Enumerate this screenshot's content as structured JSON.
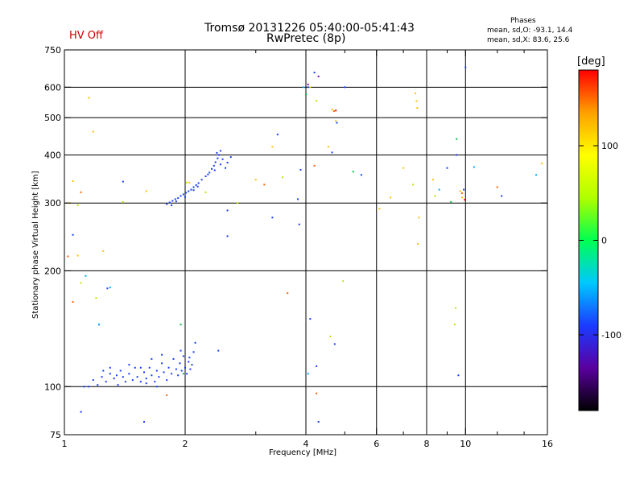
{
  "header": {
    "status": "HV Off",
    "status_color": "#cc0000",
    "title": "Tromsø 20131226 05:40:00-05:41:43",
    "subtitle": "RwPretec (8p)",
    "stats_heading": "Phases",
    "stats_o": "mean, sd,O: -93.1, 14.4",
    "stats_x": "mean, sd,X:  83.6, 25.6"
  },
  "chart_data": {
    "type": "scatter",
    "xlabel": "Frequency [MHz]",
    "ylabel": "Stationary phase Virtual Height [km]",
    "x_scale": "log",
    "y_scale": "log",
    "xlim": [
      1,
      16
    ],
    "ylim": [
      75,
      750
    ],
    "x_ticks": [
      1,
      2,
      4,
      6,
      8,
      10,
      16
    ],
    "x_tick_labels": [
      "1",
      "2",
      "4",
      "6",
      "8",
      "10",
      "16"
    ],
    "x_minor_ticks": [
      3,
      5,
      7,
      9,
      12,
      14
    ],
    "x_grid": [
      2,
      4,
      6,
      8,
      10
    ],
    "y_ticks": [
      75,
      100,
      200,
      300,
      400,
      500,
      600,
      750
    ],
    "y_tick_labels": [
      "75",
      "100",
      "200",
      "300",
      "400",
      "500",
      "600",
      "750"
    ],
    "y_grid": [
      100,
      200,
      300,
      400,
      500,
      600
    ],
    "grid": true,
    "colorbar": {
      "label": "[deg]",
      "range": [
        -180,
        180
      ],
      "ticks": [
        100,
        0,
        -100
      ],
      "tick_labels": [
        "100",
        "0",
        "-100"
      ],
      "stops": [
        "#000000",
        "#5a00a0",
        "#1a3cff",
        "#00c8ff",
        "#00ff50",
        "#b0ff00",
        "#ffff00",
        "#ffa000",
        "#ff0000"
      ]
    },
    "series": [
      {
        "color": "#1a3cff",
        "points": [
          [
            1.15,
            100
          ],
          [
            1.18,
            104
          ],
          [
            1.21,
            101
          ],
          [
            1.24,
            106
          ],
          [
            1.27,
            103
          ],
          [
            1.3,
            108
          ],
          [
            1.33,
            105
          ],
          [
            1.36,
            101
          ],
          [
            1.38,
            110
          ],
          [
            1.4,
            106
          ],
          [
            1.42,
            103
          ],
          [
            1.45,
            108
          ],
          [
            1.48,
            104
          ],
          [
            1.5,
            112
          ],
          [
            1.52,
            106
          ],
          [
            1.55,
            103
          ],
          [
            1.58,
            109
          ],
          [
            1.6,
            105
          ],
          [
            1.63,
            112
          ],
          [
            1.65,
            107
          ],
          [
            1.68,
            103
          ],
          [
            1.7,
            110
          ],
          [
            1.72,
            106
          ],
          [
            1.75,
            115
          ],
          [
            1.77,
            109
          ],
          [
            1.8,
            104
          ],
          [
            1.82,
            112
          ],
          [
            1.85,
            108
          ],
          [
            1.87,
            118
          ],
          [
            1.9,
            111
          ],
          [
            1.92,
            107
          ],
          [
            1.94,
            115
          ],
          [
            1.96,
            110
          ],
          [
            1.98,
            120
          ],
          [
            2.0,
            112
          ],
          [
            2.02,
            108
          ],
          [
            2.04,
            116
          ],
          [
            2.06,
            111
          ],
          [
            2.08,
            114
          ],
          [
            2.1,
            123
          ],
          [
            2.12,
            130
          ],
          [
            1.25,
            110
          ],
          [
            1.35,
            107
          ],
          [
            1.45,
            114
          ],
          [
            1.55,
            112
          ],
          [
            1.65,
            118
          ],
          [
            1.75,
            121
          ],
          [
            1.95,
            124
          ],
          [
            2.05,
            119
          ],
          [
            1.6,
            102
          ],
          [
            1.7,
            100
          ],
          [
            1.8,
            298
          ],
          [
            1.83,
            301
          ],
          [
            1.86,
            304
          ],
          [
            1.89,
            307
          ],
          [
            1.92,
            309
          ],
          [
            1.95,
            313
          ],
          [
            1.98,
            316
          ],
          [
            2.01,
            319
          ],
          [
            2.04,
            322
          ],
          [
            2.07,
            325
          ],
          [
            2.1,
            330
          ],
          [
            2.13,
            334
          ],
          [
            2.16,
            338
          ],
          [
            2.2,
            345
          ],
          [
            2.25,
            352
          ],
          [
            2.3,
            360
          ],
          [
            2.33,
            368
          ],
          [
            2.36,
            375
          ],
          [
            2.38,
            383
          ],
          [
            2.41,
            392
          ],
          [
            2.43,
            400
          ],
          [
            2.45,
            410
          ],
          [
            2.48,
            390
          ],
          [
            2.52,
            370
          ],
          [
            2.55,
            382
          ],
          [
            2.6,
            395
          ],
          [
            1.85,
            296
          ],
          [
            1.9,
            303
          ],
          [
            2.0,
            311
          ],
          [
            2.1,
            324
          ],
          [
            2.15,
            331
          ],
          [
            2.28,
            356
          ],
          [
            2.37,
            365
          ],
          [
            2.4,
            405
          ],
          [
            2.45,
            378
          ],
          [
            1.05,
            248
          ],
          [
            1.3,
            112
          ],
          [
            1.28,
            180
          ],
          [
            1.4,
            341
          ],
          [
            1.58,
            81
          ],
          [
            1.1,
            86
          ],
          [
            1.12,
            100
          ],
          [
            1.22,
            145
          ],
          [
            2.55,
            246
          ],
          [
            2.55,
            287
          ],
          [
            2.42,
            124
          ],
          [
            3.3,
            275
          ],
          [
            3.4,
            452
          ],
          [
            3.82,
            307
          ],
          [
            3.88,
            366
          ],
          [
            4.05,
            600
          ],
          [
            4.2,
            655
          ],
          [
            4.25,
            113
          ],
          [
            4.3,
            81
          ],
          [
            4.65,
            406
          ],
          [
            4.78,
            485
          ],
          [
            4.72,
            129
          ],
          [
            5.0,
            600
          ],
          [
            5.5,
            355
          ],
          [
            9.0,
            370
          ],
          [
            9.5,
            400
          ],
          [
            9.6,
            107
          ],
          [
            9.9,
            325
          ],
          [
            10.0,
            676
          ],
          [
            4.1,
            150
          ],
          [
            3.85,
            264
          ],
          [
            12.3,
            313
          ]
        ]
      },
      {
        "color": "#00a8ff",
        "points": [
          [
            1.13,
            194
          ],
          [
            1.3,
            181
          ],
          [
            1.22,
            145
          ],
          [
            4.05,
            108
          ],
          [
            8.6,
            325
          ],
          [
            10.5,
            372
          ],
          [
            15,
            355
          ],
          [
            3.95,
            600
          ]
        ]
      },
      {
        "color": "#00c040",
        "points": [
          [
            1.95,
            145
          ],
          [
            1.98,
            108
          ],
          [
            4.0,
            575
          ],
          [
            5.25,
            362
          ],
          [
            9.2,
            302
          ],
          [
            9.5,
            440
          ]
        ]
      },
      {
        "color": "#c8e000",
        "points": [
          [
            1.08,
            296
          ],
          [
            1.1,
            186
          ],
          [
            1.2,
            170
          ],
          [
            1.4,
            302
          ],
          [
            2.02,
            339
          ],
          [
            2.25,
            320
          ],
          [
            2.7,
            300
          ],
          [
            3.5,
            350
          ],
          [
            4.1,
            600
          ],
          [
            4.25,
            553
          ],
          [
            4.6,
            135
          ],
          [
            4.95,
            188
          ],
          [
            7.4,
            335
          ],
          [
            8.4,
            313
          ],
          [
            9.4,
            145
          ],
          [
            9.45,
            160
          ]
        ]
      },
      {
        "color": "#ffc000",
        "points": [
          [
            1.03,
            300
          ],
          [
            1.05,
            342
          ],
          [
            1.08,
            219
          ],
          [
            1.15,
            563
          ],
          [
            1.18,
            460
          ],
          [
            1.25,
            225
          ],
          [
            1.6,
            322
          ],
          [
            2.05,
            339
          ],
          [
            3.0,
            345
          ],
          [
            3.3,
            420
          ],
          [
            4.55,
            420
          ],
          [
            4.65,
            525
          ],
          [
            4.75,
            490
          ],
          [
            6.1,
            290
          ],
          [
            6.5,
            310
          ],
          [
            7.0,
            370
          ],
          [
            7.5,
            578
          ],
          [
            7.55,
            552
          ],
          [
            7.58,
            530
          ],
          [
            7.6,
            235
          ],
          [
            7.65,
            275
          ],
          [
            8.3,
            345
          ],
          [
            9.7,
            322
          ],
          [
            9.8,
            310
          ],
          [
            15.5,
            380
          ]
        ]
      },
      {
        "color": "#ff6000",
        "points": [
          [
            1.1,
            320
          ],
          [
            1.05,
            166
          ],
          [
            1.02,
            218
          ],
          [
            1.8,
            95
          ],
          [
            3.15,
            335
          ],
          [
            3.6,
            175
          ],
          [
            4.2,
            375
          ],
          [
            4.25,
            96
          ],
          [
            4.7,
            520
          ],
          [
            9.8,
            318
          ],
          [
            12,
            330
          ]
        ]
      },
      {
        "color": "#ff0000",
        "points": [
          [
            4.75,
            522
          ],
          [
            9.95,
            306
          ]
        ]
      },
      {
        "color": "#8000c0",
        "points": [
          [
            4.05,
            610
          ],
          [
            4.3,
            640
          ]
        ]
      }
    ]
  }
}
